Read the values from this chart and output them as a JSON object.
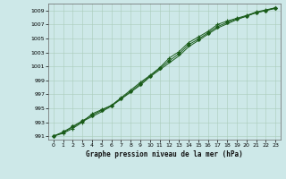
{
  "xlabel": "Graphe pression niveau de la mer (hPa)",
  "background_color": "#cde8e8",
  "plot_bg_color": "#cde8e8",
  "grid_color": "#aaccbb",
  "line_color": "#1a5c1a",
  "ylim": [
    990.5,
    1010.0
  ],
  "xlim": [
    -0.5,
    23.5
  ],
  "yticks": [
    991,
    993,
    995,
    997,
    999,
    1001,
    1003,
    1005,
    1007,
    1009
  ],
  "xticks": [
    0,
    1,
    2,
    3,
    4,
    5,
    6,
    7,
    8,
    9,
    10,
    11,
    12,
    13,
    14,
    15,
    16,
    17,
    18,
    19,
    20,
    21,
    22,
    23
  ],
  "line1_x": [
    0,
    1,
    2,
    3,
    4,
    5,
    6,
    7,
    8,
    9,
    10,
    11,
    12,
    13,
    14,
    15,
    16,
    17,
    18,
    19,
    20,
    21,
    22,
    23
  ],
  "line1_y": [
    991.0,
    991.4,
    992.1,
    993.0,
    994.2,
    994.8,
    995.4,
    996.5,
    997.6,
    998.7,
    999.7,
    1000.8,
    1002.2,
    1003.1,
    1004.4,
    1005.2,
    1006.0,
    1007.0,
    1007.5,
    1007.9,
    1008.3,
    1008.8,
    1009.1,
    1009.4
  ],
  "line2_x": [
    0,
    1,
    2,
    3,
    4,
    5,
    6,
    7,
    8,
    9,
    10,
    11,
    12,
    13,
    14,
    15,
    16,
    17,
    18,
    19,
    20,
    21,
    22,
    23
  ],
  "line2_y": [
    991.0,
    991.5,
    992.3,
    993.1,
    993.8,
    994.5,
    995.3,
    996.3,
    997.3,
    998.3,
    999.5,
    1000.5,
    1001.5,
    1002.5,
    1003.8,
    1004.7,
    1005.6,
    1006.5,
    1007.1,
    1007.7,
    1008.2,
    1008.7,
    1009.0,
    1009.3
  ],
  "line3_x": [
    0,
    1,
    2,
    3,
    4,
    5,
    6,
    7,
    8,
    9,
    10,
    11,
    12,
    13,
    14,
    15,
    16,
    17,
    18,
    19,
    20,
    21,
    22,
    23
  ],
  "line3_y": [
    991.0,
    991.6,
    992.4,
    993.2,
    994.0,
    994.7,
    995.4,
    996.4,
    997.4,
    998.5,
    999.6,
    1000.7,
    1001.8,
    1002.8,
    1004.1,
    1004.9,
    1005.8,
    1006.7,
    1007.3,
    1007.8,
    1008.2,
    1008.7,
    1009.0,
    1009.4
  ]
}
